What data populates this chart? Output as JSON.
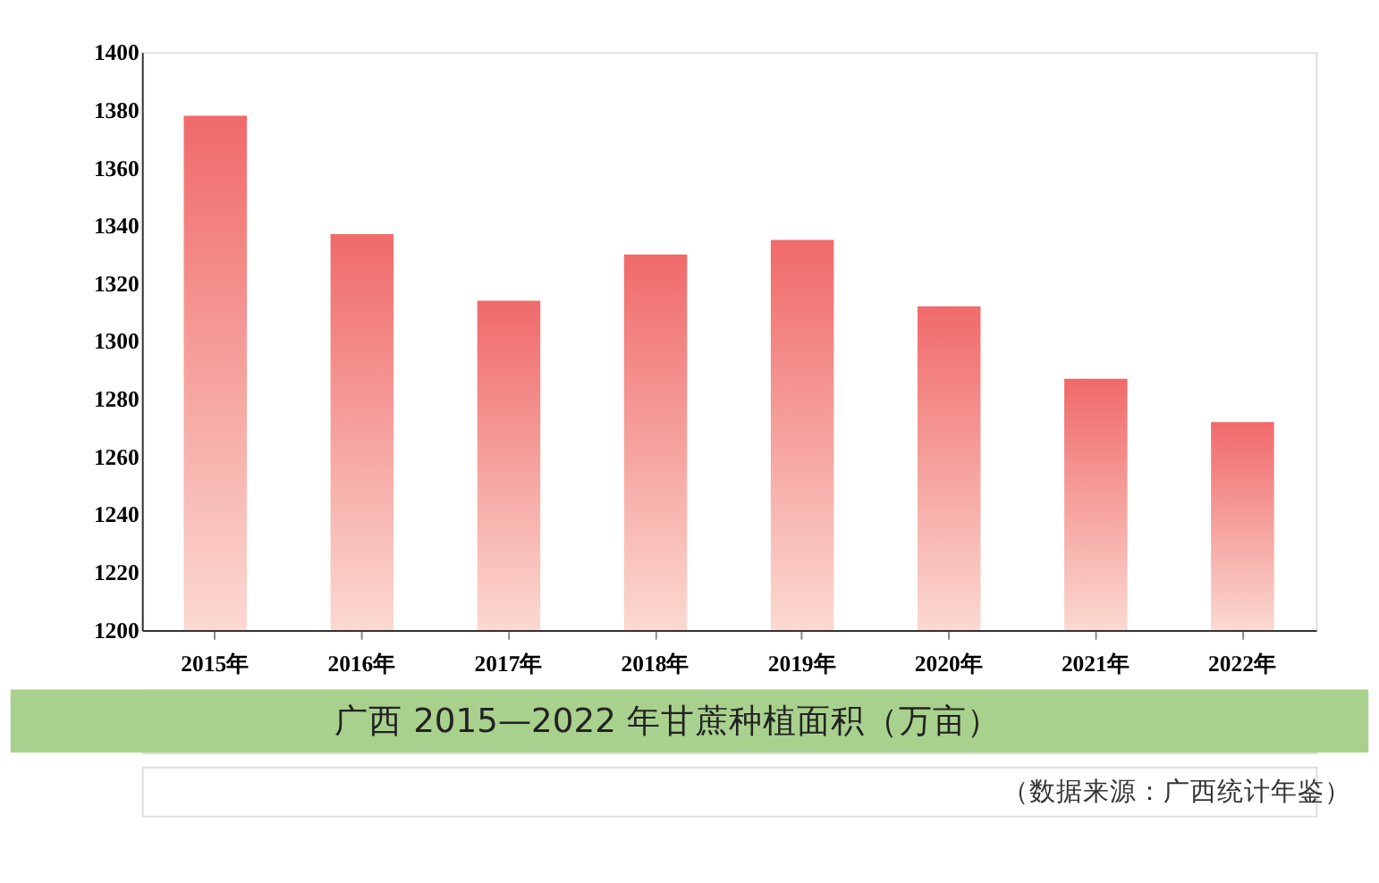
{
  "chart_data": {
    "type": "bar",
    "title": "广西 2015—2022 年甘蔗种植面积（万亩）",
    "categories": [
      "2015年",
      "2016年",
      "2017年",
      "2018年",
      "2019年",
      "2020年",
      "2021年",
      "2022年"
    ],
    "values": [
      1378,
      1337,
      1314,
      1330,
      1335,
      1312,
      1287,
      1272
    ],
    "color": "#f06a6a",
    "ylim": [
      1200,
      1400
    ],
    "yticks": [
      1200,
      1220,
      1240,
      1260,
      1280,
      1300,
      1320,
      1340,
      1360,
      1380,
      1400
    ],
    "grid": false,
    "annotations": [
      "（数据来源：广西统计年鉴）"
    ]
  }
}
